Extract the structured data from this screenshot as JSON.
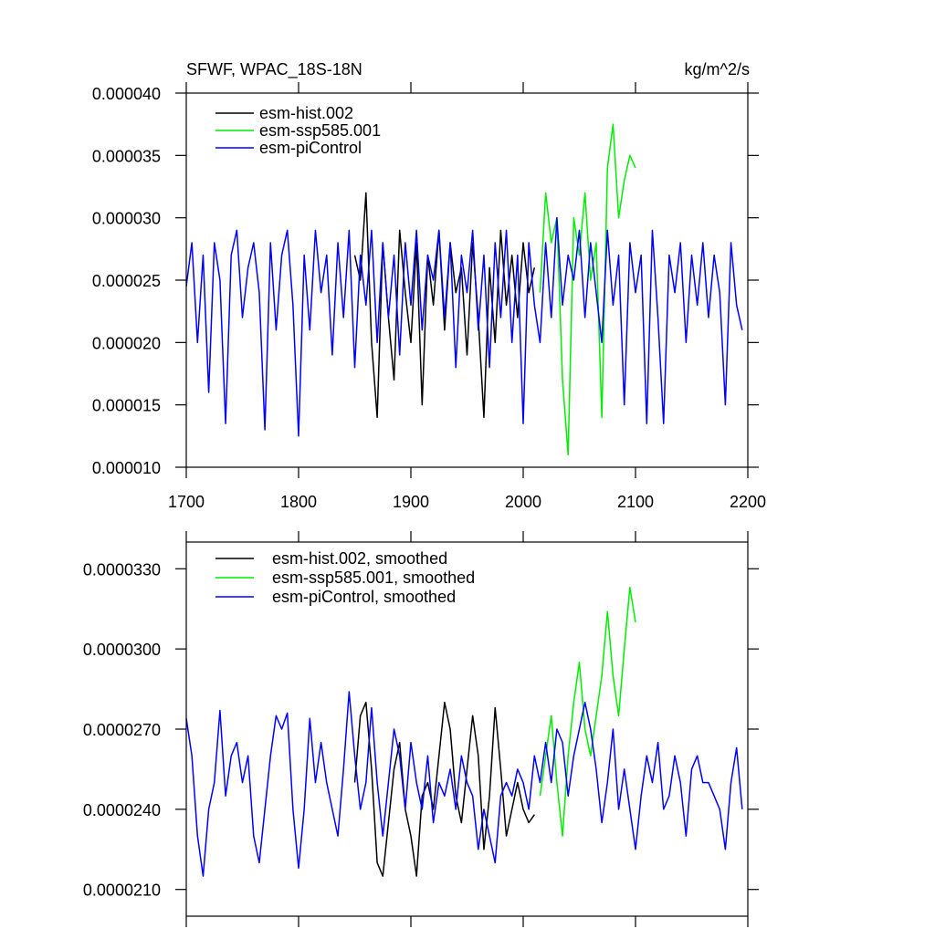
{
  "chart_data": [
    {
      "type": "line",
      "title": "SFWF, WPAC_18S-18N",
      "units": "kg/m^2/s",
      "xlim": [
        1700,
        2200
      ],
      "ylim": [
        1e-05,
        4e-05
      ],
      "xticks": [
        1700,
        1800,
        1900,
        2000,
        2100,
        2200
      ],
      "yticks": [
        {
          "value": 1e-05,
          "label": "0.000010"
        },
        {
          "value": 1.5e-05,
          "label": "0.000015"
        },
        {
          "value": 2e-05,
          "label": "0.000020"
        },
        {
          "value": 2.5e-05,
          "label": "0.000025"
        },
        {
          "value": 3e-05,
          "label": "0.000030"
        },
        {
          "value": 3.5e-05,
          "label": "0.000035"
        },
        {
          "value": 4e-05,
          "label": "0.000040"
        }
      ],
      "legend": "top-left",
      "series": [
        {
          "name": "esm-hist.002",
          "color": "#000000",
          "x": [
            1850,
            1855,
            1860,
            1865,
            1870,
            1875,
            1880,
            1885,
            1890,
            1895,
            1900,
            1905,
            1910,
            1915,
            1920,
            1925,
            1930,
            1935,
            1940,
            1945,
            1950,
            1955,
            1960,
            1965,
            1970,
            1975,
            1980,
            1985,
            1990,
            1995,
            2000,
            2005,
            2010
          ],
          "values": [
            2.7e-05,
            2.5e-05,
            3.2e-05,
            2e-05,
            1.4e-05,
            2.8e-05,
            2.2e-05,
            1.7e-05,
            2.9e-05,
            2.4e-05,
            2e-05,
            2.8e-05,
            1.5e-05,
            2.7e-05,
            2.3e-05,
            2.9e-05,
            2.1e-05,
            2.8e-05,
            2.4e-05,
            2.6e-05,
            1.9e-05,
            2.8e-05,
            2.2e-05,
            1.4e-05,
            2.6e-05,
            2e-05,
            2.9e-05,
            2.3e-05,
            2.7e-05,
            2.2e-05,
            2.8e-05,
            2.4e-05,
            2.6e-05
          ]
        },
        {
          "name": "esm-ssp585.001",
          "color": "#00ee00",
          "x": [
            2015,
            2020,
            2025,
            2030,
            2035,
            2040,
            2045,
            2050,
            2055,
            2060,
            2065,
            2070,
            2075,
            2080,
            2085,
            2090,
            2095,
            2100
          ],
          "values": [
            2.4e-05,
            3.2e-05,
            2.8e-05,
            3e-05,
            1.7e-05,
            1.1e-05,
            3e-05,
            2.7e-05,
            3.2e-05,
            2.5e-05,
            2.8e-05,
            1.4e-05,
            3.4e-05,
            3.75e-05,
            3e-05,
            3.3e-05,
            3.5e-05,
            3.4e-05
          ]
        },
        {
          "name": "esm-piControl",
          "color": "#0000ff",
          "x": [
            1700,
            1705,
            1710,
            1715,
            1720,
            1725,
            1730,
            1735,
            1740,
            1745,
            1750,
            1755,
            1760,
            1765,
            1770,
            1775,
            1780,
            1785,
            1790,
            1795,
            1800,
            1805,
            1810,
            1815,
            1820,
            1825,
            1830,
            1835,
            1840,
            1845,
            1850,
            1855,
            1860,
            1865,
            1870,
            1875,
            1880,
            1885,
            1890,
            1895,
            1900,
            1905,
            1910,
            1915,
            1920,
            1925,
            1930,
            1935,
            1940,
            1945,
            1950,
            1955,
            1960,
            1965,
            1970,
            1975,
            1980,
            1985,
            1990,
            1995,
            2000,
            2005,
            2010,
            2015,
            2020,
            2025,
            2030,
            2035,
            2040,
            2045,
            2050,
            2055,
            2060,
            2065,
            2070,
            2075,
            2080,
            2085,
            2090,
            2095,
            2100,
            2105,
            2110,
            2115,
            2120,
            2125,
            2130,
            2135,
            2140,
            2145,
            2150,
            2155,
            2160,
            2165,
            2170,
            2175,
            2180,
            2185,
            2190,
            2195
          ],
          "values": [
            2.45e-05,
            2.8e-05,
            2e-05,
            2.7e-05,
            1.6e-05,
            2.8e-05,
            2.5e-05,
            1.35e-05,
            2.7e-05,
            2.9e-05,
            2.2e-05,
            2.6e-05,
            2.8e-05,
            2.4e-05,
            1.3e-05,
            2.8e-05,
            2.1e-05,
            2.7e-05,
            2.9e-05,
            2.3e-05,
            1.25e-05,
            2.7e-05,
            2.1e-05,
            2.9e-05,
            2.4e-05,
            2.7e-05,
            1.9e-05,
            2.8e-05,
            2.2e-05,
            2.9e-05,
            1.8e-05,
            2.7e-05,
            2.3e-05,
            2.9e-05,
            2e-05,
            2.8e-05,
            2.2e-05,
            2.7e-05,
            1.9e-05,
            2.8e-05,
            2.3e-05,
            2.9e-05,
            2.1e-05,
            2.7e-05,
            2.5e-05,
            2.9e-05,
            2.2e-05,
            2.8e-05,
            1.8e-05,
            2.7e-05,
            2.4e-05,
            2.9e-05,
            2.1e-05,
            2.7e-05,
            1.8e-05,
            2.8e-05,
            2.2e-05,
            2.9e-05,
            2e-05,
            2.7e-05,
            1.35e-05,
            2.8e-05,
            2.3e-05,
            2e-05,
            2.8e-05,
            2.2e-05,
            3e-05,
            2.3e-05,
            2.7e-05,
            2.5e-05,
            2.9e-05,
            2.2e-05,
            2.8e-05,
            2.4e-05,
            2e-05,
            2.9e-05,
            2.3e-05,
            2.7e-05,
            1.5e-05,
            2.8e-05,
            2.4e-05,
            2.7e-05,
            1.35e-05,
            2.9e-05,
            2.2e-05,
            1.35e-05,
            2.7e-05,
            2.4e-05,
            2.8e-05,
            2e-05,
            2.7e-05,
            2.3e-05,
            2.8e-05,
            2.2e-05,
            2.7e-05,
            2.4e-05,
            1.5e-05,
            2.8e-05,
            2.3e-05,
            2.1e-05
          ]
        }
      ]
    },
    {
      "type": "line",
      "xlim": [
        1700,
        2200
      ],
      "ylim": [
        2e-05,
        3.4e-05
      ],
      "xticks": [
        1700,
        1800,
        1900,
        2000,
        2100,
        2200
      ],
      "yticks": [
        {
          "value": 2.1e-05,
          "label": "0.0000210"
        },
        {
          "value": 2.4e-05,
          "label": "0.0000240"
        },
        {
          "value": 2.7e-05,
          "label": "0.0000270"
        },
        {
          "value": 3e-05,
          "label": "0.0000300"
        },
        {
          "value": 3.3e-05,
          "label": "0.0000330"
        }
      ],
      "legend": "top-left",
      "series": [
        {
          "name": "esm-hist.002, smoothed",
          "color": "#000000",
          "x": [
            1850,
            1855,
            1860,
            1865,
            1870,
            1875,
            1880,
            1885,
            1890,
            1895,
            1900,
            1905,
            1910,
            1915,
            1920,
            1925,
            1930,
            1935,
            1940,
            1945,
            1950,
            1955,
            1960,
            1965,
            1970,
            1975,
            1980,
            1985,
            1990,
            1995,
            2000,
            2005,
            2010
          ],
          "values": [
            2.5e-05,
            2.75e-05,
            2.8e-05,
            2.55e-05,
            2.2e-05,
            2.15e-05,
            2.35e-05,
            2.55e-05,
            2.65e-05,
            2.4e-05,
            2.3e-05,
            2.15e-05,
            2.45e-05,
            2.5e-05,
            2.4e-05,
            2.6e-05,
            2.8e-05,
            2.7e-05,
            2.45e-05,
            2.35e-05,
            2.55e-05,
            2.75e-05,
            2.6e-05,
            2.25e-05,
            2.45e-05,
            2.78e-05,
            2.55e-05,
            2.3e-05,
            2.4e-05,
            2.5e-05,
            2.4e-05,
            2.35e-05,
            2.38e-05
          ]
        },
        {
          "name": "esm-ssp585.001, smoothed",
          "color": "#00ee00",
          "x": [
            2015,
            2020,
            2025,
            2030,
            2035,
            2040,
            2045,
            2050,
            2055,
            2060,
            2065,
            2070,
            2075,
            2080,
            2085,
            2090,
            2095,
            2100
          ],
          "values": [
            2.45e-05,
            2.6e-05,
            2.75e-05,
            2.5e-05,
            2.3e-05,
            2.6e-05,
            2.8e-05,
            2.95e-05,
            2.7e-05,
            2.6e-05,
            2.75e-05,
            2.9e-05,
            3.14e-05,
            2.9e-05,
            2.75e-05,
            3e-05,
            3.23e-05,
            3.1e-05
          ]
        },
        {
          "name": "esm-piControl, smoothed",
          "color": "#0000ff",
          "x": [
            1700,
            1705,
            1710,
            1715,
            1720,
            1725,
            1730,
            1735,
            1740,
            1745,
            1750,
            1755,
            1760,
            1765,
            1770,
            1775,
            1780,
            1785,
            1790,
            1795,
            1800,
            1805,
            1810,
            1815,
            1820,
            1825,
            1830,
            1835,
            1840,
            1845,
            1850,
            1855,
            1860,
            1865,
            1870,
            1875,
            1880,
            1885,
            1890,
            1895,
            1900,
            1905,
            1910,
            1915,
            1920,
            1925,
            1930,
            1935,
            1940,
            1945,
            1950,
            1955,
            1960,
            1965,
            1970,
            1975,
            1980,
            1985,
            1990,
            1995,
            2000,
            2005,
            2010,
            2015,
            2020,
            2025,
            2030,
            2035,
            2040,
            2045,
            2050,
            2055,
            2060,
            2065,
            2070,
            2075,
            2080,
            2085,
            2090,
            2095,
            2100,
            2105,
            2110,
            2115,
            2120,
            2125,
            2130,
            2135,
            2140,
            2145,
            2150,
            2155,
            2160,
            2165,
            2170,
            2175,
            2180,
            2185,
            2190,
            2195
          ],
          "values": [
            2.74e-05,
            2.6e-05,
            2.3e-05,
            2.15e-05,
            2.4e-05,
            2.5e-05,
            2.77e-05,
            2.45e-05,
            2.6e-05,
            2.65e-05,
            2.5e-05,
            2.6e-05,
            2.3e-05,
            2.2e-05,
            2.4e-05,
            2.6e-05,
            2.75e-05,
            2.7e-05,
            2.76e-05,
            2.4e-05,
            2.18e-05,
            2.4e-05,
            2.74e-05,
            2.5e-05,
            2.65e-05,
            2.5e-05,
            2.4e-05,
            2.3e-05,
            2.55e-05,
            2.84e-05,
            2.6e-05,
            2.4e-05,
            2.5e-05,
            2.78e-05,
            2.5e-05,
            2.3e-05,
            2.5e-05,
            2.7e-05,
            2.6e-05,
            2.4e-05,
            2.65e-05,
            2.5e-05,
            2.4e-05,
            2.6e-05,
            2.35e-05,
            2.5e-05,
            2.45e-05,
            2.55e-05,
            2.4e-05,
            2.6e-05,
            2.5e-05,
            2.45e-05,
            2.25e-05,
            2.4e-05,
            2.3e-05,
            2.2e-05,
            2.45e-05,
            2.5e-05,
            2.45e-05,
            2.55e-05,
            2.5e-05,
            2.4e-05,
            2.6e-05,
            2.5e-05,
            2.65e-05,
            2.5e-05,
            2.7e-05,
            2.65e-05,
            2.45e-05,
            2.6e-05,
            2.7e-05,
            2.8e-05,
            2.7e-05,
            2.55e-05,
            2.35e-05,
            2.5e-05,
            2.7e-05,
            2.4e-05,
            2.55e-05,
            2.4e-05,
            2.25e-05,
            2.45e-05,
            2.6e-05,
            2.5e-05,
            2.65e-05,
            2.4e-05,
            2.45e-05,
            2.6e-05,
            2.5e-05,
            2.3e-05,
            2.55e-05,
            2.6e-05,
            2.5e-05,
            2.5e-05,
            2.45e-05,
            2.4e-05,
            2.25e-05,
            2.5e-05,
            2.63e-05,
            2.4e-05
          ]
        }
      ]
    }
  ]
}
